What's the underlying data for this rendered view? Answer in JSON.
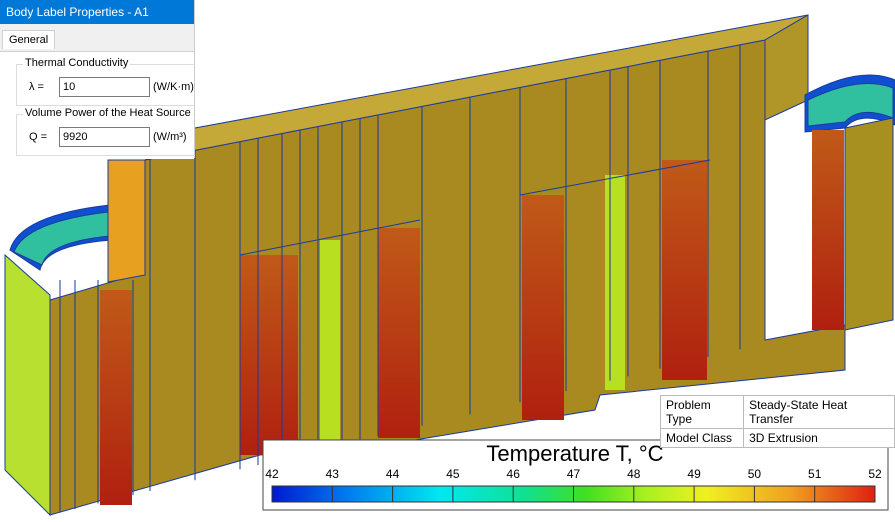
{
  "dialog": {
    "title": "Body Label Properties - A1",
    "tab": "General",
    "thermal_conductivity": {
      "label": "Thermal Conductivity",
      "symbol": "λ =",
      "value": 10,
      "unit": "(W/K·m)"
    },
    "heat_source": {
      "label": "Volume Power of the Heat Source",
      "symbol": "Q =",
      "value": 9920,
      "unit": "(W/m³)"
    }
  },
  "info_table": {
    "rows": [
      [
        "Problem Type",
        "Steady-State Heat Transfer"
      ],
      [
        "Model Class",
        "3D Extrusion"
      ]
    ]
  },
  "legend": {
    "title": "Temperature T, °C",
    "range": [
      42,
      52
    ],
    "ticks": [
      42,
      43,
      44,
      45,
      46,
      47,
      48,
      49,
      50,
      51,
      52
    ]
  }
}
